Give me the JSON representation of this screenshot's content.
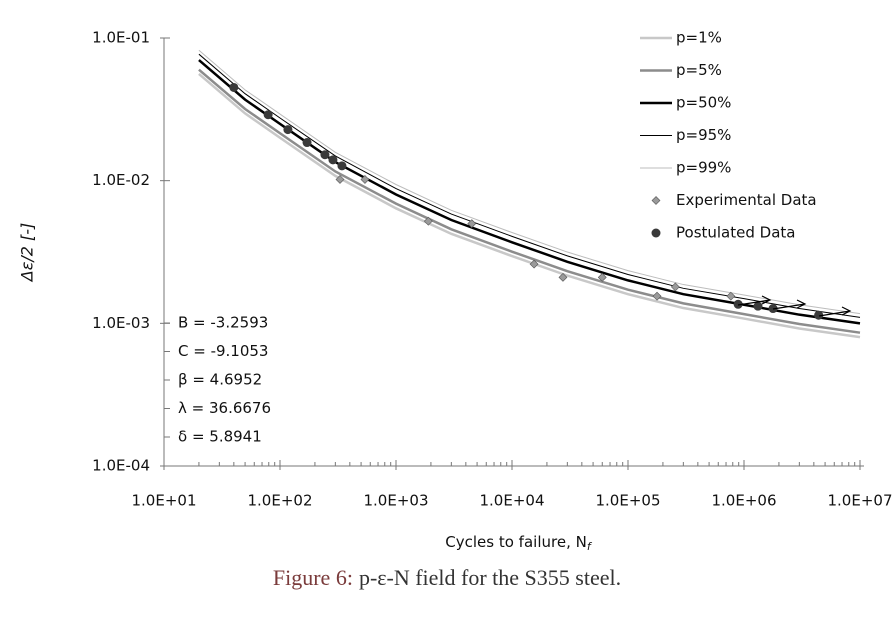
{
  "chart_data": {
    "type": "line",
    "ylabel": "Δε/2 [-]",
    "xlabel": "Cycles to failure, N",
    "xlabel_subscript": "f",
    "caption_label": "Figure 6:",
    "caption": "p-ε-N field for the S355 steel.",
    "log_x": true,
    "log_y": true,
    "xlim": [
      10,
      10000000
    ],
    "ylim": [
      0.0001,
      0.1
    ],
    "xticks": [
      {
        "value": 10,
        "label": "1.0E+01"
      },
      {
        "value": 100,
        "label": "1.0E+02"
      },
      {
        "value": 1000,
        "label": "1.0E+03"
      },
      {
        "value": 10000,
        "label": "1.0E+04"
      },
      {
        "value": 100000,
        "label": "1.0E+05"
      },
      {
        "value": 1000000,
        "label": "1.0E+06"
      },
      {
        "value": 10000000,
        "label": "1.0E+07"
      }
    ],
    "yticks": [
      {
        "value": 0.0001,
        "label": "1.0E-04"
      },
      {
        "value": 0.001,
        "label": "1.0E-03"
      },
      {
        "value": 0.01,
        "label": "1.0E-02"
      },
      {
        "value": 0.1,
        "label": "1.0E-01"
      }
    ],
    "annotations": [
      "B = -3.2593",
      "C = -9.1053",
      "β = 4.6952",
      "λ = 36.6676",
      "δ = 5.8941"
    ],
    "series": [
      {
        "name": "p=1%",
        "style": "line",
        "color": "#c8c8c8",
        "line_width": 2.5,
        "x": [
          20,
          50,
          100,
          300,
          1000,
          3000,
          10000,
          30000,
          100000,
          300000,
          1000000,
          3000000,
          10000000
        ],
        "values": [
          0.056,
          0.0296,
          0.02,
          0.0108,
          0.0064,
          0.00424,
          0.00296,
          0.00216,
          0.0016,
          0.00128,
          0.00108,
          0.00092,
          0.0008
        ]
      },
      {
        "name": "p=5%",
        "style": "line",
        "color": "#8c8c8c",
        "line_width": 2.5,
        "x": [
          20,
          50,
          100,
          300,
          1000,
          3000,
          10000,
          30000,
          100000,
          300000,
          1000000,
          3000000,
          10000000
        ],
        "values": [
          0.06,
          0.0318,
          0.0215,
          0.0116,
          0.0069,
          0.00456,
          0.00318,
          0.00232,
          0.00172,
          0.00138,
          0.00116,
          0.00099,
          0.00086
        ]
      },
      {
        "name": "p=50%",
        "style": "line",
        "color": "#000000",
        "line_width": 2.5,
        "x": [
          20,
          50,
          100,
          300,
          1000,
          3000,
          10000,
          30000,
          100000,
          300000,
          1000000,
          3000000,
          10000000
        ],
        "values": [
          0.07,
          0.037,
          0.025,
          0.0135,
          0.008,
          0.0053,
          0.0037,
          0.0027,
          0.002,
          0.0016,
          0.00135,
          0.00115,
          0.001
        ]
      },
      {
        "name": "p=95%",
        "style": "line",
        "color": "#000000",
        "line_width": 1,
        "x": [
          20,
          50,
          100,
          300,
          1000,
          3000,
          10000,
          30000,
          100000,
          300000,
          1000000,
          3000000,
          10000000
        ],
        "values": [
          0.077,
          0.0407,
          0.0275,
          0.0149,
          0.0088,
          0.00583,
          0.00407,
          0.00297,
          0.0022,
          0.00176,
          0.00149,
          0.00127,
          0.0011
        ]
      },
      {
        "name": "p=99%",
        "style": "line",
        "color": "#bdbdbd",
        "line_width": 1,
        "x": [
          20,
          50,
          100,
          300,
          1000,
          3000,
          10000,
          30000,
          100000,
          300000,
          1000000,
          3000000,
          10000000
        ],
        "values": [
          0.082,
          0.0433,
          0.0293,
          0.0158,
          0.0094,
          0.0062,
          0.00433,
          0.00316,
          0.00234,
          0.00187,
          0.00158,
          0.00135,
          0.00117
        ]
      },
      {
        "name": "Experimental Data",
        "style": "diamond",
        "color": "#9a9a9a",
        "x": [
          329,
          540,
          1900,
          4500,
          15500,
          27500,
          60000,
          178000,
          256000,
          770000
        ],
        "values": [
          0.0102,
          0.0102,
          0.0052,
          0.005,
          0.0026,
          0.0021,
          0.0021,
          0.00155,
          0.0018,
          0.00155
        ]
      },
      {
        "name": "Postulated Data",
        "style": "circle",
        "color": "#3a3a3a",
        "x": [
          40,
          79,
          117,
          171,
          244,
          286,
          342,
          890000,
          1320000,
          1780000,
          4400000
        ],
        "values": [
          0.045,
          0.029,
          0.0228,
          0.0185,
          0.0152,
          0.014,
          0.0127,
          0.00136,
          0.00132,
          0.00127,
          0.00114
        ]
      }
    ]
  }
}
